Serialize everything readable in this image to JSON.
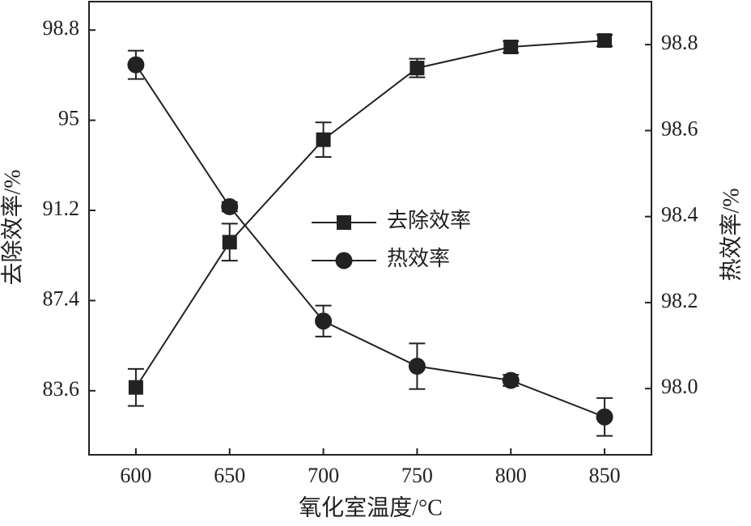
{
  "chart_data": {
    "type": "line",
    "x_label": "氧化室温度/°C",
    "y_label": "去除效率/%",
    "y2_label": "热效率/%",
    "x": [
      600,
      650,
      700,
      750,
      800,
      850
    ],
    "xlim": [
      575,
      875
    ],
    "xticks": [
      600,
      650,
      700,
      750,
      800,
      850
    ],
    "ylim": [
      80.9,
      100
    ],
    "yticks": [
      83.6,
      87.4,
      91.2,
      95.0,
      98.8
    ],
    "y2lim": [
      97.846,
      98.9
    ],
    "y2ticks": [
      {
        "value": 98.0,
        "label": "98.0"
      },
      98.2,
      98.4,
      98.6,
      98.8
    ],
    "legend": "center",
    "series": [
      {
        "name": "去除效率",
        "color": "#222222",
        "marker": "square",
        "axis": "y",
        "values": [
          83.74,
          89.86,
          94.18,
          97.2,
          98.09,
          98.36
        ],
        "errors": [
          0.78,
          0.78,
          0.73,
          0.39,
          0.24,
          0.24
        ]
      },
      {
        "name": "热效率",
        "color": "#222222",
        "marker": "circle",
        "axis": "y2",
        "values": [
          98.753,
          98.423,
          98.157,
          98.052,
          98.019,
          97.934
        ],
        "errors": [
          0.033,
          0.011,
          0.036,
          0.053,
          0.013,
          0.044
        ]
      }
    ]
  }
}
